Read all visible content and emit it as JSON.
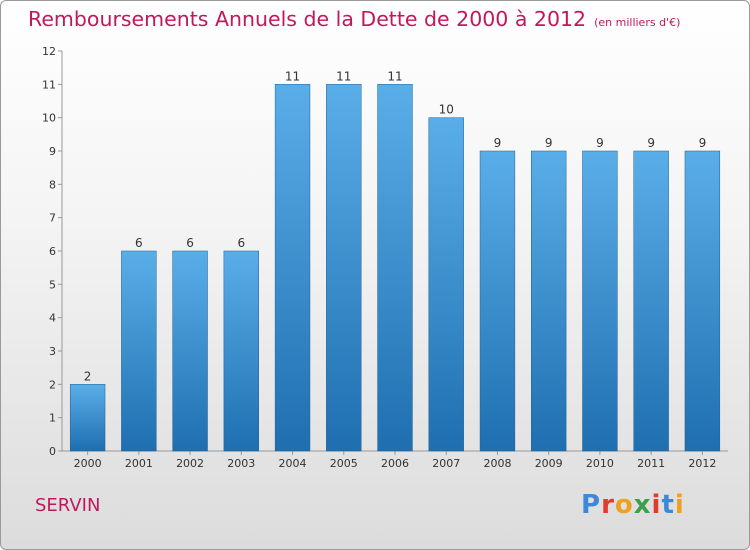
{
  "title": "Remboursements Annuels de la Dette de 2000 à 2012",
  "unit": "(en milliers d'€)",
  "commune": "SERVIN",
  "logo": {
    "p": "P",
    "r": "r",
    "o": "o",
    "x": "x",
    "i1": "i",
    "t": "t",
    "i2": "i"
  },
  "colors": {
    "title": "#c2185b",
    "bar_top": "#5aaee8",
    "bar_bottom": "#1f6fb0"
  },
  "chart_data": {
    "type": "bar",
    "title": "Remboursements Annuels de la Dette de 2000 à 2012",
    "xlabel": "",
    "ylabel": "",
    "categories": [
      "2000",
      "2001",
      "2002",
      "2003",
      "2004",
      "2005",
      "2006",
      "2007",
      "2008",
      "2009",
      "2010",
      "2011",
      "2012"
    ],
    "values": [
      2,
      6,
      6,
      6,
      11,
      11,
      11,
      10,
      9,
      9,
      9,
      9,
      9
    ],
    "ylim": [
      0,
      12
    ],
    "yticks": [
      0,
      1,
      2,
      3,
      4,
      5,
      6,
      7,
      8,
      9,
      10,
      11,
      12
    ],
    "grid": false
  }
}
